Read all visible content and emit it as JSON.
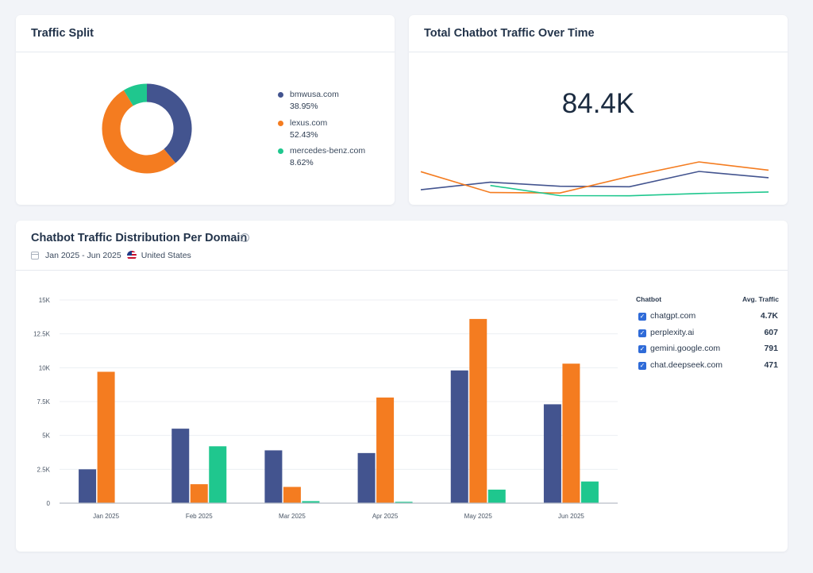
{
  "split": {
    "title": "Traffic Split",
    "legend": [
      {
        "name": "bmwusa.com",
        "pct": "38.95%",
        "color": "#43548f"
      },
      {
        "name": "lexus.com",
        "pct": "52.43%",
        "color": "#f47c20"
      },
      {
        "name": "mercedes-benz.com",
        "pct": "8.62%",
        "color": "#1fc78e"
      }
    ]
  },
  "total": {
    "title": "Total Chatbot Traffic Over Time",
    "value": "84.4K"
  },
  "dist": {
    "title": "Chatbot Traffic Distribution Per Domain",
    "info_icon": "info-icon",
    "date_range": "Jan 2025 - Jun 2025",
    "country": "United States",
    "table": {
      "col_chatbot": "Chatbot",
      "col_avg": "Avg. Traffic",
      "rows": [
        {
          "name": "chatgpt.com",
          "avg": "4.7K",
          "checked": true
        },
        {
          "name": "perplexity.ai",
          "avg": "607",
          "checked": true
        },
        {
          "name": "gemini.google.com",
          "avg": "791",
          "checked": true
        },
        {
          "name": "chat.deepseek.com",
          "avg": "471",
          "checked": true
        }
      ]
    }
  },
  "chart_data": [
    {
      "type": "pie",
      "donut": true,
      "categories": [
        "bmwusa.com",
        "lexus.com",
        "mercedes-benz.com"
      ],
      "values": [
        38.95,
        52.43,
        8.62
      ],
      "colors": [
        "#43548f",
        "#f47c20",
        "#1fc78e"
      ],
      "legend": "right"
    },
    {
      "type": "line",
      "x": [
        "Jan 2025",
        "Feb 2025",
        "Mar 2025",
        "Apr 2025",
        "May 2025",
        "Jun 2025"
      ],
      "series": [
        {
          "values": [
            2500,
            5500,
            3900,
            3700,
            9800,
            7300
          ],
          "color": "#43548f"
        },
        {
          "values": [
            9700,
            1400,
            1200,
            7800,
            13600,
            10300
          ],
          "color": "#f47c20"
        },
        {
          "values": [
            null,
            4200,
            150,
            100,
            1000,
            1600
          ],
          "color": "#1fc78e"
        }
      ],
      "axes_visible": false
    },
    {
      "type": "bar",
      "categories": [
        "Jan 2025",
        "Feb 2025",
        "Mar 2025",
        "Apr 2025",
        "May 2025",
        "Jun 2025"
      ],
      "series": [
        {
          "values": [
            2500,
            5500,
            3900,
            3700,
            9800,
            7300
          ],
          "color": "#43548f"
        },
        {
          "values": [
            9700,
            1400,
            1200,
            7800,
            13600,
            10300
          ],
          "color": "#f47c20"
        },
        {
          "values": [
            0,
            4200,
            150,
            100,
            1000,
            1600
          ],
          "color": "#1fc78e"
        }
      ],
      "yticks": [
        "0",
        "2.5K",
        "5K",
        "7.5K",
        "10K",
        "12.5K",
        "15K"
      ],
      "ylim": [
        0,
        15000
      ],
      "grid": true
    }
  ]
}
